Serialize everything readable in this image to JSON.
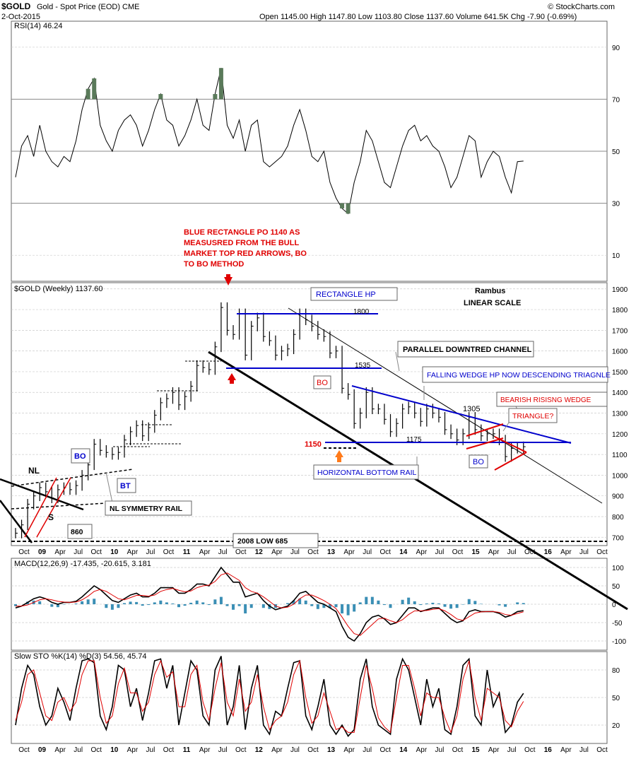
{
  "header": {
    "symbol": "$GOLD",
    "description": "Gold - Spot Price (EOD)  CME",
    "date": "2-Oct-2015",
    "ohlc": "Open 1145.00  High 1147.80  Low 1103.80  Close 1137.60  Volume 641.5K  Chg -7.90 (-0.69%)",
    "credit": "© StockCharts.com"
  },
  "colors": {
    "price_bar": "#000000",
    "annotation_red": "#e00000",
    "annotation_blue": "#0000cc",
    "rsi_fill": "#5a7a5a",
    "macd_hist": "#3b8fb5",
    "signal_red": "#e00000",
    "grid": "#cccccc"
  },
  "chart_data": [
    {
      "id": "rsi",
      "type": "line",
      "title": "RSI(14) 46.24",
      "y_ticks": [
        90,
        70,
        50,
        30,
        10
      ],
      "ylim": [
        0,
        100
      ],
      "overbought": 70,
      "oversold": 30,
      "x": [
        "2008-10",
        "2008-11",
        "2008-12",
        "2009-01",
        "2009-02",
        "2009-03",
        "2009-04",
        "2009-05",
        "2009-06",
        "2009-07",
        "2009-08",
        "2009-09",
        "2009-10",
        "2009-11",
        "2009-12",
        "2010-01",
        "2010-02",
        "2010-03",
        "2010-04",
        "2010-05",
        "2010-06",
        "2010-07",
        "2010-08",
        "2010-09",
        "2010-10",
        "2010-11",
        "2010-12",
        "2011-01",
        "2011-02",
        "2011-03",
        "2011-04",
        "2011-05",
        "2011-06",
        "2011-07",
        "2011-08",
        "2011-09",
        "2011-10",
        "2011-11",
        "2011-12",
        "2012-01",
        "2012-02",
        "2012-03",
        "2012-04",
        "2012-05",
        "2012-06",
        "2012-07",
        "2012-08",
        "2012-09",
        "2012-10",
        "2012-11",
        "2012-12",
        "2013-01",
        "2013-02",
        "2013-03",
        "2013-04",
        "2013-05",
        "2013-06",
        "2013-07",
        "2013-08",
        "2013-09",
        "2013-10",
        "2013-11",
        "2013-12",
        "2014-01",
        "2014-02",
        "2014-03",
        "2014-04",
        "2014-05",
        "2014-06",
        "2014-07",
        "2014-08",
        "2014-09",
        "2014-10",
        "2014-11",
        "2014-12",
        "2015-01",
        "2015-02",
        "2015-03",
        "2015-04",
        "2015-05",
        "2015-06",
        "2015-07",
        "2015-08",
        "2015-09",
        "2015-10"
      ],
      "values": [
        40,
        52,
        56,
        48,
        60,
        50,
        46,
        44,
        48,
        46,
        54,
        66,
        74,
        78,
        60,
        54,
        50,
        58,
        62,
        64,
        60,
        52,
        58,
        66,
        72,
        62,
        60,
        52,
        56,
        62,
        70,
        60,
        58,
        72,
        82,
        60,
        55,
        62,
        50,
        60,
        62,
        46,
        44,
        46,
        48,
        52,
        60,
        66,
        58,
        48,
        46,
        50,
        38,
        32,
        28,
        26,
        38,
        46,
        58,
        54,
        46,
        38,
        36,
        44,
        52,
        58,
        60,
        54,
        56,
        52,
        50,
        44,
        36,
        40,
        48,
        56,
        54,
        40,
        46,
        50,
        48,
        40,
        34,
        46,
        46.24
      ]
    },
    {
      "id": "price",
      "type": "line",
      "title": "$GOLD (Weekly) 1137.60",
      "note": "Rambus LINEAR SCALE",
      "y_ticks": [
        1900,
        1800,
        1700,
        1600,
        1500,
        1400,
        1300,
        1200,
        1100,
        1000,
        900,
        800,
        700
      ],
      "ylim": [
        660,
        1930
      ],
      "x_tick_labels": [
        "Oct",
        "09",
        "Apr",
        "Jul",
        "Oct",
        "10",
        "Apr",
        "Jul",
        "Oct",
        "11",
        "Apr",
        "Jul",
        "Oct",
        "12",
        "Apr",
        "Jul",
        "Oct",
        "13",
        "Apr",
        "Jul",
        "Oct",
        "14",
        "Apr",
        "Jul",
        "Oct",
        "15",
        "Apr",
        "Jul",
        "Oct",
        "16",
        "Apr",
        "Jul",
        "Oct"
      ],
      "x": [
        "2008-10",
        "2008-11",
        "2008-12",
        "2009-01",
        "2009-02",
        "2009-03",
        "2009-04",
        "2009-05",
        "2009-06",
        "2009-07",
        "2009-08",
        "2009-09",
        "2009-10",
        "2009-11",
        "2009-12",
        "2010-01",
        "2010-02",
        "2010-03",
        "2010-04",
        "2010-05",
        "2010-06",
        "2010-07",
        "2010-08",
        "2010-09",
        "2010-10",
        "2010-11",
        "2010-12",
        "2011-01",
        "2011-02",
        "2011-03",
        "2011-04",
        "2011-05",
        "2011-06",
        "2011-07",
        "2011-08",
        "2011-09",
        "2011-10",
        "2011-11",
        "2011-12",
        "2012-01",
        "2012-02",
        "2012-03",
        "2012-04",
        "2012-05",
        "2012-06",
        "2012-07",
        "2012-08",
        "2012-09",
        "2012-10",
        "2012-11",
        "2012-12",
        "2013-01",
        "2013-02",
        "2013-03",
        "2013-04",
        "2013-05",
        "2013-06",
        "2013-07",
        "2013-08",
        "2013-09",
        "2013-10",
        "2013-11",
        "2013-12",
        "2014-01",
        "2014-02",
        "2014-03",
        "2014-04",
        "2014-05",
        "2014-06",
        "2014-07",
        "2014-08",
        "2014-09",
        "2014-10",
        "2014-11",
        "2014-12",
        "2015-01",
        "2015-02",
        "2015-03",
        "2015-04",
        "2015-05",
        "2015-06",
        "2015-07",
        "2015-08",
        "2015-09",
        "2015-10"
      ],
      "values": [
        720,
        760,
        860,
        900,
        940,
        920,
        890,
        930,
        940,
        930,
        950,
        1000,
        1050,
        1150,
        1120,
        1110,
        1100,
        1110,
        1170,
        1210,
        1240,
        1190,
        1230,
        1290,
        1350,
        1370,
        1400,
        1340,
        1380,
        1430,
        1530,
        1520,
        1510,
        1620,
        1810,
        1700,
        1680,
        1780,
        1580,
        1720,
        1760,
        1670,
        1650,
        1580,
        1600,
        1610,
        1680,
        1780,
        1750,
        1720,
        1680,
        1670,
        1590,
        1600,
        1420,
        1390,
        1250,
        1300,
        1400,
        1320,
        1320,
        1270,
        1210,
        1250,
        1320,
        1330,
        1300,
        1260,
        1320,
        1300,
        1280,
        1220,
        1200,
        1170,
        1200,
        1280,
        1220,
        1190,
        1200,
        1200,
        1170,
        1090,
        1130,
        1130,
        1137.6
      ],
      "annotations": {
        "blue_rectangle_po": "BLUE RECTANGLE PO 1140 AS MEASUSRED FROM THE BULL MARKET TOP RED ARROWS, BO TO BO METHOD",
        "rectangle_hp": "RECTANGLE HP",
        "level_1800": "1800",
        "level_1535": "1535",
        "parallel_channel": "PARALLEL DOWNTRED CHANNEL",
        "falling_wedge": "FALLING WEDGE HP NOW DESCENDING TRIAGNLE",
        "level_1305": "1305",
        "bearish_wedge": "BEARISH RISISNG WEDGE",
        "triangle_q": "TRIANGLE?",
        "level_1175": "1175",
        "level_1150": "1150",
        "horizontal_bottom_rail": "HORIZONTAL BOTTOM RAIL",
        "bo1": "BO",
        "bo2": "BO",
        "bo3": "BO",
        "bt": "BT",
        "nl": "NL",
        "s": "S",
        "nl_symmetry_rail": "NL SYMMETRY RAIL",
        "level_860": "860",
        "low_2008": "2008 LOW 685"
      }
    },
    {
      "id": "macd",
      "type": "line",
      "title": "MACD(12,26,9) -17.435, -20.615, 3.181",
      "legend": [
        "MACD(12,26,9) -17.435",
        "-20.615",
        "3.181"
      ],
      "y_ticks": [
        100,
        50,
        0,
        -50,
        -100
      ],
      "ylim": [
        -125,
        125
      ],
      "x": [
        "2008-10",
        "2008-11",
        "2008-12",
        "2009-01",
        "2009-02",
        "2009-03",
        "2009-04",
        "2009-05",
        "2009-06",
        "2009-07",
        "2009-08",
        "2009-09",
        "2009-10",
        "2009-11",
        "2009-12",
        "2010-01",
        "2010-02",
        "2010-03",
        "2010-04",
        "2010-05",
        "2010-06",
        "2010-07",
        "2010-08",
        "2010-09",
        "2010-10",
        "2010-11",
        "2010-12",
        "2011-01",
        "2011-02",
        "2011-03",
        "2011-04",
        "2011-05",
        "2011-06",
        "2011-07",
        "2011-08",
        "2011-09",
        "2011-10",
        "2011-11",
        "2011-12",
        "2012-01",
        "2012-02",
        "2012-03",
        "2012-04",
        "2012-05",
        "2012-06",
        "2012-07",
        "2012-08",
        "2012-09",
        "2012-10",
        "2012-11",
        "2012-12",
        "2013-01",
        "2013-02",
        "2013-03",
        "2013-04",
        "2013-05",
        "2013-06",
        "2013-07",
        "2013-08",
        "2013-09",
        "2013-10",
        "2013-11",
        "2013-12",
        "2014-01",
        "2014-02",
        "2014-03",
        "2014-04",
        "2014-05",
        "2014-06",
        "2014-07",
        "2014-08",
        "2014-09",
        "2014-10",
        "2014-11",
        "2014-12",
        "2015-01",
        "2015-02",
        "2015-03",
        "2015-04",
        "2015-05",
        "2015-06",
        "2015-07",
        "2015-08",
        "2015-09",
        "2015-10"
      ],
      "series": [
        {
          "values": [
            -10,
            -5,
            5,
            15,
            20,
            15,
            5,
            0,
            5,
            5,
            8,
            20,
            35,
            50,
            40,
            25,
            10,
            5,
            15,
            25,
            30,
            20,
            20,
            30,
            45,
            45,
            45,
            30,
            30,
            40,
            55,
            55,
            50,
            75,
            100,
            80,
            60,
            60,
            20,
            25,
            30,
            10,
            -5,
            -15,
            -10,
            -5,
            10,
            30,
            35,
            20,
            5,
            0,
            -10,
            -20,
            -60,
            -90,
            -100,
            -80,
            -50,
            -35,
            -30,
            -40,
            -55,
            -50,
            -30,
            -10,
            -10,
            -20,
            -15,
            -10,
            -10,
            -25,
            -40,
            -50,
            -45,
            -20,
            -15,
            -20,
            -20,
            -20,
            -25,
            -35,
            -30,
            -20,
            -17.435
          ]
        },
        {
          "values": [
            -5,
            -5,
            -2,
            5,
            12,
            15,
            12,
            8,
            6,
            5,
            6,
            12,
            22,
            35,
            40,
            35,
            25,
            15,
            12,
            18,
            24,
            24,
            22,
            25,
            35,
            40,
            43,
            38,
            34,
            36,
            45,
            50,
            52,
            62,
            80,
            85,
            75,
            65,
            45,
            35,
            30,
            20,
            8,
            -5,
            -10,
            -8,
            0,
            15,
            25,
            25,
            18,
            10,
            0,
            -12,
            -35,
            -60,
            -80,
            -85,
            -70,
            -55,
            -40,
            -38,
            -45,
            -50,
            -42,
            -28,
            -18,
            -18,
            -17,
            -14,
            -12,
            -18,
            -28,
            -40,
            -44,
            -34,
            -24,
            -21,
            -20,
            -20,
            -22,
            -28,
            -30,
            -25,
            -20.615
          ]
        }
      ],
      "histogram": [
        -5,
        0,
        7,
        10,
        8,
        0,
        -7,
        -8,
        -1,
        0,
        2,
        8,
        13,
        15,
        0,
        -10,
        -15,
        -10,
        3,
        7,
        6,
        -4,
        -2,
        5,
        10,
        5,
        2,
        -8,
        -4,
        4,
        10,
        5,
        -2,
        13,
        20,
        -5,
        -15,
        -5,
        -25,
        -10,
        0,
        -10,
        -13,
        -10,
        0,
        3,
        10,
        15,
        10,
        -5,
        -13,
        -10,
        -10,
        -8,
        -25,
        -30,
        -20,
        5,
        20,
        20,
        10,
        -2,
        -10,
        0,
        12,
        18,
        8,
        -2,
        2,
        4,
        2,
        -7,
        -12,
        -10,
        -1,
        14,
        9,
        1,
        0,
        0,
        -3,
        -7,
        0,
        5,
        3.181
      ]
    },
    {
      "id": "stochastic",
      "type": "line",
      "title": "Slow STO %K(14) %D(3) 54.56, 45.74",
      "legend": [
        "Slow STO %K(14) %D(3) 54.56",
        "45.74"
      ],
      "y_ticks": [
        80,
        50,
        20
      ],
      "ylim": [
        0,
        100
      ],
      "x": [
        "2008-10",
        "2008-11",
        "2008-12",
        "2009-01",
        "2009-02",
        "2009-03",
        "2009-04",
        "2009-05",
        "2009-06",
        "2009-07",
        "2009-08",
        "2009-09",
        "2009-10",
        "2009-11",
        "2009-12",
        "2010-01",
        "2010-02",
        "2010-03",
        "2010-04",
        "2010-05",
        "2010-06",
        "2010-07",
        "2010-08",
        "2010-09",
        "2010-10",
        "2010-11",
        "2010-12",
        "2011-01",
        "2011-02",
        "2011-03",
        "2011-04",
        "2011-05",
        "2011-06",
        "2011-07",
        "2011-08",
        "2011-09",
        "2011-10",
        "2011-11",
        "2011-12",
        "2012-01",
        "2012-02",
        "2012-03",
        "2012-04",
        "2012-05",
        "2012-06",
        "2012-07",
        "2012-08",
        "2012-09",
        "2012-10",
        "2012-11",
        "2012-12",
        "2013-01",
        "2013-02",
        "2013-03",
        "2013-04",
        "2013-05",
        "2013-06",
        "2013-07",
        "2013-08",
        "2013-09",
        "2013-10",
        "2013-11",
        "2013-12",
        "2014-01",
        "2014-02",
        "2014-03",
        "2014-04",
        "2014-05",
        "2014-06",
        "2014-07",
        "2014-08",
        "2014-09",
        "2014-10",
        "2014-11",
        "2014-12",
        "2015-01",
        "2015-02",
        "2015-03",
        "2015-04",
        "2015-05",
        "2015-06",
        "2015-07",
        "2015-08",
        "2015-09",
        "2015-10"
      ],
      "series": [
        {
          "values": [
            20,
            60,
            85,
            75,
            40,
            20,
            30,
            60,
            45,
            25,
            60,
            90,
            92,
            88,
            30,
            15,
            40,
            85,
            80,
            40,
            60,
            25,
            55,
            90,
            92,
            60,
            85,
            20,
            55,
            90,
            80,
            30,
            20,
            80,
            95,
            20,
            40,
            85,
            15,
            60,
            85,
            20,
            10,
            35,
            30,
            60,
            88,
            90,
            30,
            15,
            40,
            70,
            20,
            10,
            20,
            8,
            15,
            70,
            92,
            40,
            20,
            15,
            10,
            70,
            92,
            80,
            50,
            20,
            70,
            40,
            60,
            15,
            10,
            40,
            85,
            92,
            30,
            20,
            80,
            40,
            55,
            12,
            20,
            45,
            54.56
          ]
        },
        {
          "values": [
            25,
            45,
            75,
            80,
            55,
            30,
            25,
            45,
            50,
            35,
            45,
            75,
            90,
            90,
            50,
            22,
            30,
            65,
            82,
            55,
            55,
            35,
            45,
            75,
            90,
            72,
            78,
            40,
            40,
            75,
            85,
            45,
            25,
            60,
            88,
            45,
            30,
            70,
            35,
            45,
            75,
            40,
            15,
            25,
            30,
            45,
            75,
            90,
            50,
            22,
            30,
            55,
            35,
            15,
            18,
            12,
            12,
            50,
            85,
            60,
            28,
            18,
            12,
            50,
            85,
            85,
            60,
            30,
            55,
            50,
            50,
            28,
            12,
            30,
            70,
            90,
            50,
            25,
            60,
            55,
            50,
            25,
            18,
            35,
            45.74
          ]
        }
      ]
    }
  ]
}
